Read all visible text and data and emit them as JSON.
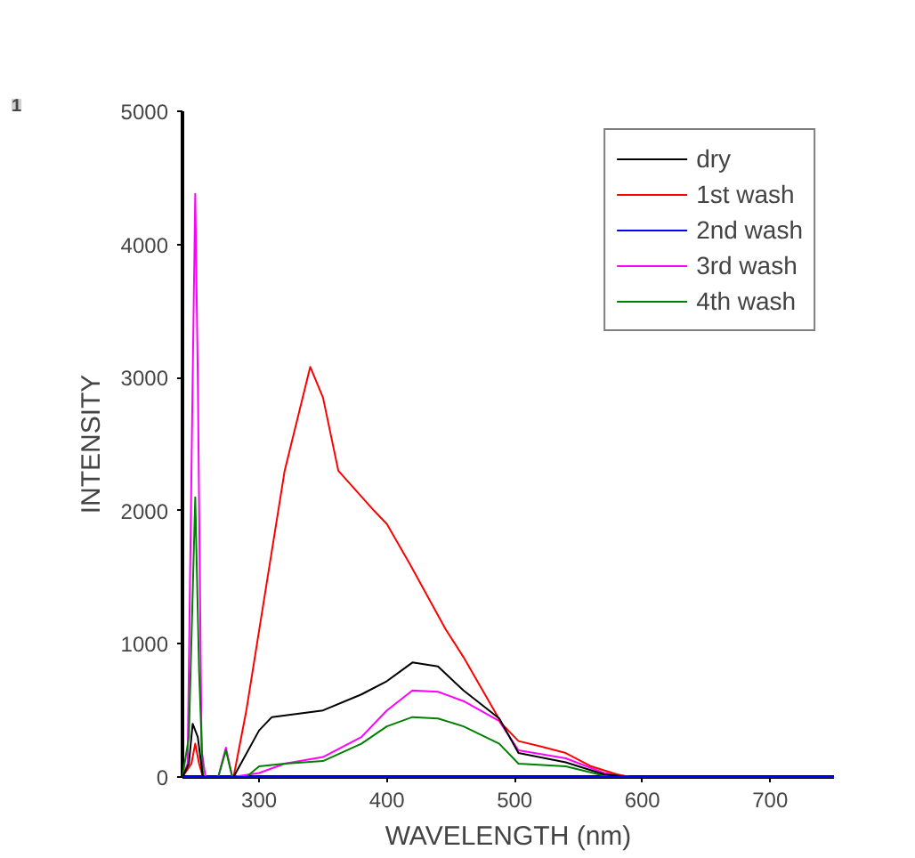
{
  "chart_data": {
    "type": "line",
    "xlabel": "WAVELENGTH (nm)",
    "ylabel": "INTENSITY",
    "annotations": [
      "1"
    ],
    "xlim": [
      240,
      750
    ],
    "ylim": [
      0,
      5000
    ],
    "xticks": [
      300,
      400,
      500,
      600,
      700
    ],
    "yticks": [
      0,
      1000,
      2000,
      3000,
      4000,
      5000
    ],
    "grid": false,
    "legend": "top right",
    "marker": "none",
    "line_style": "solid",
    "series": [
      {
        "name": "dry",
        "color": "#000000",
        "x": [
          240,
          245,
          248,
          252,
          256,
          280,
          300,
          310,
          350,
          380,
          400,
          420,
          440,
          460,
          488,
          503,
          540,
          570,
          590,
          750
        ],
        "values": [
          0,
          100,
          400,
          300,
          0,
          0,
          350,
          450,
          500,
          620,
          720,
          860,
          830,
          650,
          440,
          180,
          110,
          20,
          0,
          0
        ]
      },
      {
        "name": "1st wash",
        "color": "#ff0000",
        "x": [
          240,
          247,
          250,
          253,
          256,
          280,
          290,
          300,
          320,
          340,
          350,
          362,
          390,
          400,
          418,
          446,
          460,
          490,
          503,
          520,
          540,
          560,
          580,
          590,
          750
        ],
        "values": [
          0,
          100,
          250,
          100,
          0,
          0,
          500,
          1100,
          2300,
          3080,
          2850,
          2300,
          2000,
          1900,
          1600,
          1110,
          900,
          400,
          270,
          230,
          180,
          80,
          20,
          0,
          0
        ]
      },
      {
        "name": "2nd wash",
        "color": "#0000ff",
        "x": [
          240,
          750
        ],
        "values": [
          0,
          0
        ]
      },
      {
        "name": "3rd wash",
        "color": "#ff00ff",
        "x": [
          240,
          244,
          248,
          250,
          252,
          255,
          258,
          268,
          274,
          279,
          300,
          320,
          350,
          380,
          400,
          420,
          440,
          460,
          488,
          503,
          540,
          570,
          590,
          750
        ],
        "values": [
          0,
          100,
          3000,
          4380,
          3000,
          200,
          0,
          0,
          220,
          0,
          30,
          100,
          150,
          300,
          500,
          650,
          640,
          570,
          420,
          200,
          140,
          30,
          0,
          0
        ]
      },
      {
        "name": "4th wash",
        "color": "#008000",
        "x": [
          240,
          245,
          250,
          253,
          256,
          268,
          274,
          279,
          290,
          300,
          320,
          350,
          380,
          400,
          420,
          440,
          460,
          488,
          503,
          540,
          570,
          590,
          750
        ],
        "values": [
          0,
          300,
          2100,
          800,
          0,
          0,
          200,
          0,
          0,
          80,
          100,
          120,
          250,
          380,
          450,
          440,
          380,
          250,
          100,
          80,
          10,
          0,
          0
        ]
      }
    ]
  }
}
